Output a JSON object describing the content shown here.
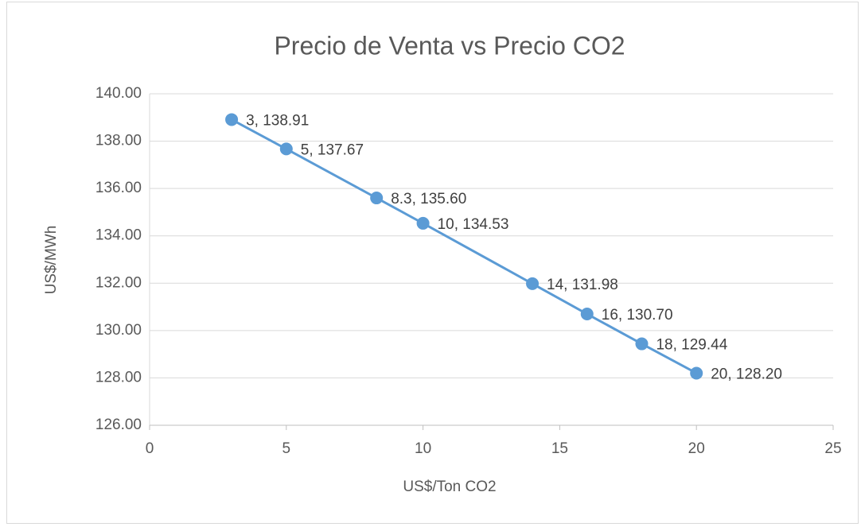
{
  "chart_data": {
    "type": "line",
    "title": "Precio de Venta vs Precio CO2",
    "x_label": "US$/Ton CO2",
    "y_label": "US$/MWh",
    "x": [
      3,
      5,
      8.3,
      10,
      14,
      16,
      18,
      20
    ],
    "values": [
      138.91,
      137.67,
      135.6,
      134.53,
      131.98,
      130.7,
      129.44,
      128.2
    ],
    "value_labels": [
      "3, 138.91",
      "5, 137.67",
      "8.3, 135.60",
      "10, 134.53",
      "14, 131.98",
      "16, 130.70",
      "18, 129.44",
      "20, 128.20"
    ],
    "color": "#5b9bd5",
    "xlim": [
      0,
      25
    ],
    "xticks": [
      0,
      5,
      10,
      15,
      20,
      25
    ],
    "ylim": [
      126,
      140
    ],
    "yticks": [
      {
        "value": 126,
        "label": "126.00"
      },
      {
        "value": 128,
        "label": "128.00"
      },
      {
        "value": 130,
        "label": "130.00"
      },
      {
        "value": 132,
        "label": "132.00"
      },
      {
        "value": 134,
        "label": "134.00"
      },
      {
        "value": 136,
        "label": "136.00"
      },
      {
        "value": 138,
        "label": "138.00"
      },
      {
        "value": 140,
        "label": "140.00"
      }
    ],
    "grid": true
  }
}
